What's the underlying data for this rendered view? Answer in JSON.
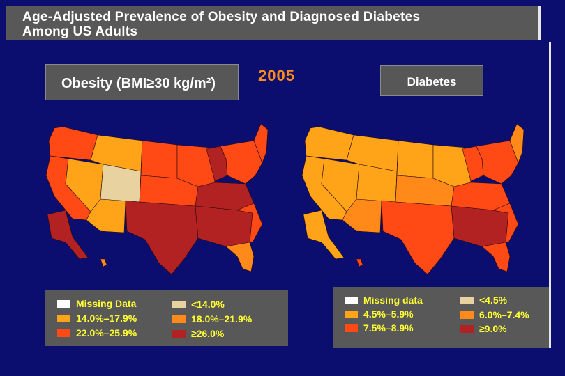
{
  "header": {
    "title_line1": "Age-Adjusted Prevalence of Obesity and Diagnosed Diabetes",
    "title_line2": "Among US Adults"
  },
  "year": "2005",
  "obesity_panel": {
    "label": "Obesity (BMI≥30 kg/m²)",
    "legend": [
      {
        "label": "Missing Data",
        "color": "#ffffff"
      },
      {
        "label": "<14.0%",
        "color": "#e8d3a0"
      },
      {
        "label": "14.0%–17.9%",
        "color": "#ffa319"
      },
      {
        "label": "18.0%–21.9%",
        "color": "#ff8a1a"
      },
      {
        "label": "22.0%–25.9%",
        "color": "#ff4a16"
      },
      {
        "label": "≥26.0%",
        "color": "#b22222"
      }
    ]
  },
  "diabetes_panel": {
    "label": "Diabetes",
    "legend": [
      {
        "label": "Missing data",
        "color": "#ffffff"
      },
      {
        "label": "<4.5%",
        "color": "#e8d3a0"
      },
      {
        "label": "4.5%–5.9%",
        "color": "#ffa319"
      },
      {
        "label": "6.0%–7.4%",
        "color": "#ff8a1a"
      },
      {
        "label": "7.5%–8.9%",
        "color": "#ff4a16"
      },
      {
        "label": "≥9.0%",
        "color": "#b22222"
      }
    ]
  },
  "colors": {
    "background": "#0b0e6e",
    "panel": "#585858",
    "legend_text": "#ffff33",
    "year": "#ff8c1a",
    "c1": "#ffa319",
    "c2": "#ff8a1a",
    "c3": "#ff4a16",
    "c4": "#b22222"
  }
}
